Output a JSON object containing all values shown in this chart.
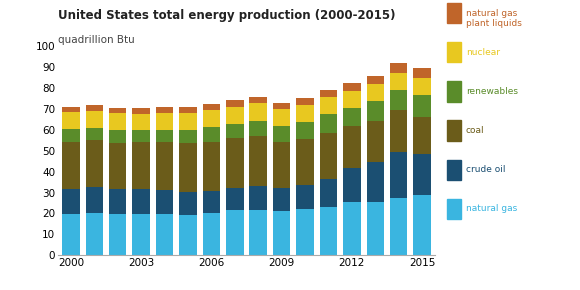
{
  "title": "United States total energy production (2000-2015)",
  "ylabel": "quadrillion Btu",
  "years": [
    2000,
    2001,
    2002,
    2003,
    2004,
    2005,
    2006,
    2007,
    2008,
    2009,
    2010,
    2011,
    2012,
    2013,
    2014,
    2015
  ],
  "natural_gas": [
    19.7,
    20.2,
    19.5,
    19.6,
    19.5,
    19.1,
    20.0,
    21.7,
    21.7,
    21.4,
    21.9,
    23.0,
    25.4,
    25.6,
    27.5,
    28.8
  ],
  "crude_oil": [
    11.9,
    12.3,
    12.1,
    12.1,
    11.9,
    11.2,
    10.9,
    10.7,
    11.3,
    11.0,
    11.6,
    13.6,
    16.2,
    18.9,
    22.0,
    19.7
  ],
  "coal": [
    22.7,
    22.7,
    22.3,
    22.3,
    22.6,
    23.2,
    23.5,
    23.5,
    23.9,
    22.0,
    22.0,
    21.9,
    20.2,
    20.0,
    20.0,
    17.9
  ],
  "renewables": [
    6.1,
    5.9,
    6.0,
    5.9,
    6.1,
    6.3,
    6.9,
    6.8,
    7.3,
    7.7,
    8.1,
    8.9,
    8.7,
    9.3,
    9.8,
    10.1
  ],
  "nuclear": [
    8.0,
    8.0,
    8.1,
    7.9,
    8.0,
    8.2,
    8.2,
    8.5,
    8.5,
    8.1,
    8.4,
    8.3,
    8.0,
    8.1,
    8.2,
    8.3
  ],
  "ngpl": [
    2.5,
    2.6,
    2.6,
    2.7,
    2.8,
    2.8,
    2.9,
    2.9,
    2.9,
    2.9,
    3.1,
    3.4,
    3.8,
    4.0,
    4.6,
    4.7
  ],
  "colors": {
    "natural_gas": "#3ab5e0",
    "crude_oil": "#1b4f72",
    "coal": "#6b5c1a",
    "renewables": "#5a8c2a",
    "nuclear": "#e8c820",
    "ngpl": "#c0652a"
  },
  "legend_colors": {
    "ngpl": "#c0652a",
    "nuclear": "#e8c820",
    "renewables": "#5a8c2a",
    "coal": "#6b5c1a",
    "crude_oil": "#1b4f72",
    "natural_gas": "#3ab5e0"
  },
  "ylim": [
    0,
    100
  ],
  "yticks": [
    0,
    10,
    20,
    30,
    40,
    50,
    60,
    70,
    80,
    90,
    100
  ],
  "bg_color": "#ffffff",
  "bar_width": 0.75
}
